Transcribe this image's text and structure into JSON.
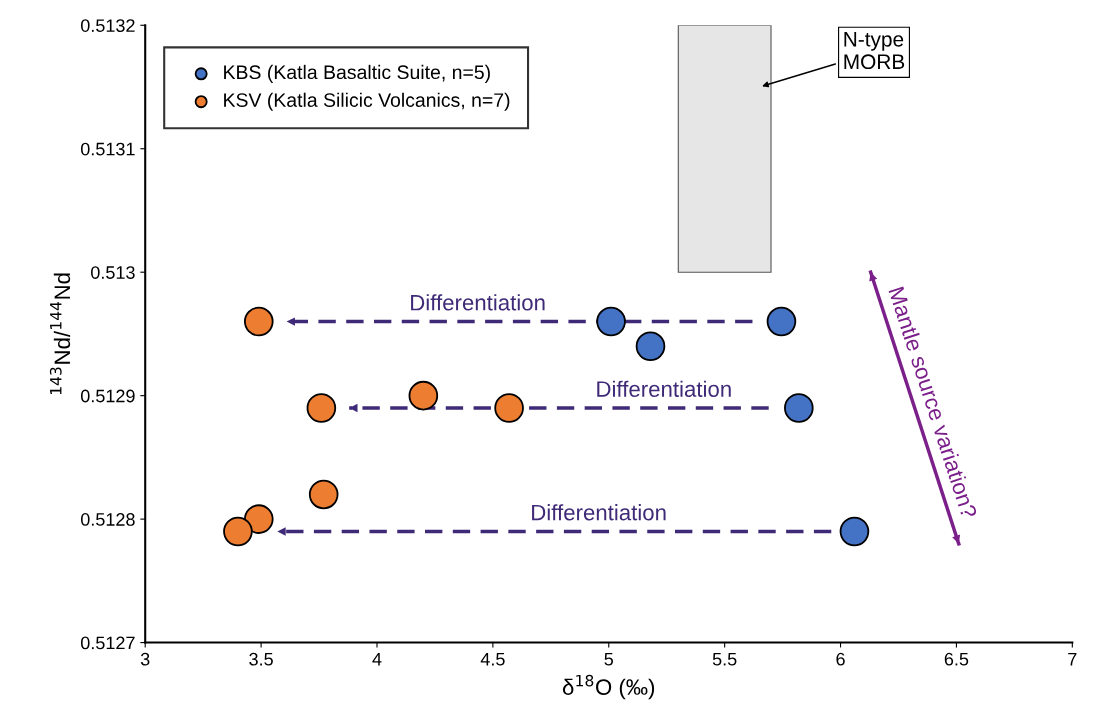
{
  "chart_data": {
    "type": "scatter",
    "xlabel": "δ$^{18}$O (‰)",
    "ylabel": "$^{143}$Nd/$^{144}$Nd",
    "xlim": [
      3,
      7
    ],
    "xticks": [
      3,
      3.5,
      4,
      4.5,
      5,
      5.5,
      6,
      6.5,
      7
    ],
    "ylim": [
      0.5127,
      0.5132
    ],
    "yticks": [
      0.5127,
      0.5128,
      0.5129,
      0.513,
      0.5131,
      0.5132
    ],
    "grid": false,
    "legend": "top left",
    "marker": "circle",
    "series": [
      {
        "type": "bar",
        "color": "#e6e6e6",
        "x": [
          5.5
        ],
        "base": [
          0.513
        ],
        "values": [
          0.0002
        ]
      },
      {
        "name": "KBS (Katla Basaltic Suite, n=5)",
        "color": "#4472c4",
        "x": [
          5.01,
          5.18,
          5.745,
          5.82,
          6.06
        ],
        "values": [
          0.51296,
          0.51294,
          0.51296,
          0.51289,
          0.51279
        ]
      },
      {
        "name": "KSV (Katla Silicic Volcanics, n=7)",
        "color": "#ed7d31",
        "x": [
          3.49,
          3.76,
          4.2,
          4.57,
          3.77,
          3.49,
          3.4
        ],
        "values": [
          0.51296,
          0.51289,
          0.5129,
          0.51289,
          0.51282,
          0.5128,
          0.51279
        ]
      },
      {
        "type": "line",
        "color": "#3f2a78",
        "line_style": "dashed",
        "marker": "none",
        "x": [
          5.62,
          3.61
        ],
        "values": [
          0.51296,
          0.51296
        ]
      },
      {
        "type": "line",
        "color": "#3f2a78",
        "line_style": "dashed",
        "marker": "none",
        "x": [
          5.69,
          3.88
        ],
        "values": [
          0.51289,
          0.51289
        ]
      },
      {
        "type": "line",
        "color": "#3f2a78",
        "line_style": "dashed",
        "marker": "none",
        "x": [
          5.96,
          3.57
        ],
        "values": [
          0.51279,
          0.51279
        ]
      },
      {
        "type": "line",
        "color": "#7b1f8a",
        "line_style": "solid",
        "marker": "none",
        "x": [
          6.13,
          6.51
        ],
        "values": [
          0.513,
          0.51278
        ]
      }
    ],
    "annotations": [
      "Differentiation",
      "Differentiation",
      "Differentiation",
      "Mantle source variation?",
      "N-type\nMORB"
    ]
  }
}
